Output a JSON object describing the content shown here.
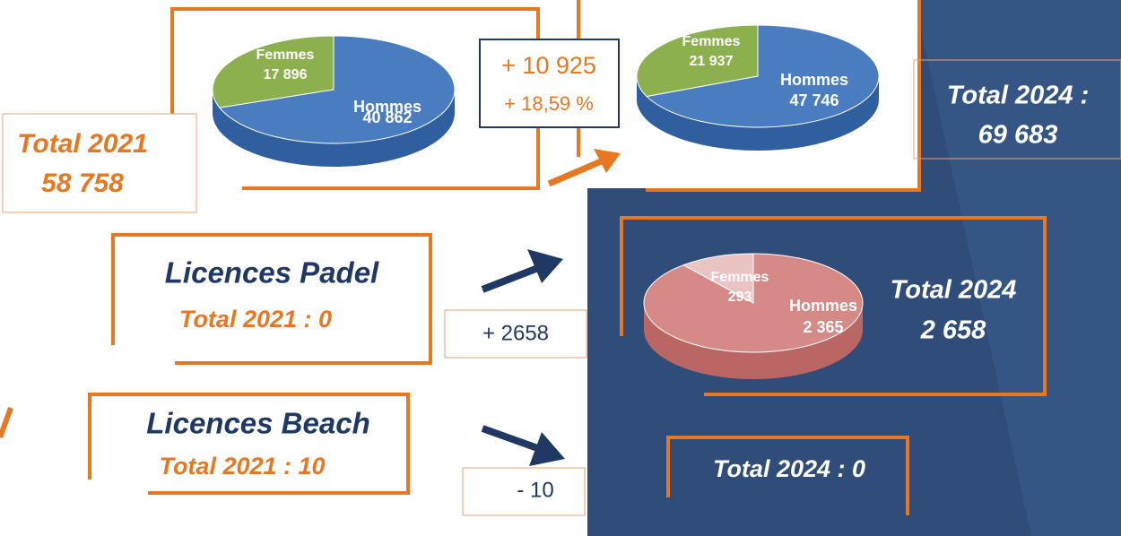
{
  "chart_data": [
    {
      "type": "pie",
      "categories": [
        "Femmes",
        "Hommes"
      ],
      "values": [
        17896,
        40862
      ],
      "value_labels": [
        "17 896",
        "40 862"
      ],
      "colors": [
        "#8db04f",
        "#4a7dc0"
      ]
    },
    {
      "type": "pie",
      "categories": [
        "Femmes",
        "Hommes"
      ],
      "values": [
        21937,
        47746
      ],
      "value_labels": [
        "21 937",
        "47 746"
      ],
      "colors": [
        "#8db04f",
        "#4a7dc0"
      ]
    },
    {
      "type": "pie",
      "categories": [
        "Femmes",
        "Hommes"
      ],
      "values": [
        293,
        2365
      ],
      "value_labels": [
        "293",
        "2 365"
      ],
      "colors": [
        "#e9c4c2",
        "#d58a88"
      ]
    }
  ],
  "total_2021_label": "Total 2021",
  "total_2021_value": "58 758",
  "diff_count": "+ 10 925",
  "diff_percent": "+ 18,59 %",
  "total_2024_label": "Total 2024 :",
  "total_2024_value": "69 683",
  "padel_title": "Licences  Padel",
  "padel_2021": "Total 2021 : 0",
  "padel_diff": "+ 2658",
  "padel_2024_label": "Total 2024",
  "padel_2024_value": "2 658",
  "beach_title": "Licences  Beach",
  "beach_2021": "Total 2021 : 10",
  "beach_diff": "- 10",
  "beach_2024": "Total 2024 : 0"
}
